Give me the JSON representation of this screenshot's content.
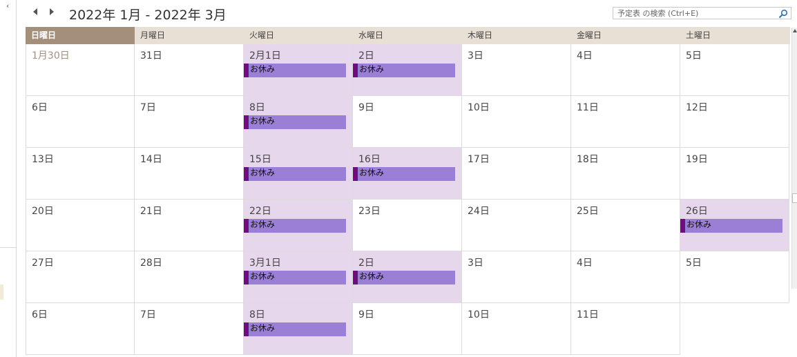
{
  "window": {
    "collapse_glyph": "‹"
  },
  "header": {
    "range_title": "2022年 1月 - 2022年 3月",
    "prev_icon": "left-arrow",
    "next_icon": "right-arrow"
  },
  "search": {
    "placeholder": "予定表 の検索 (Ctrl+E)",
    "icon": "magnifier"
  },
  "weekdays": [
    "日曜日",
    "月曜日",
    "火曜日",
    "水曜日",
    "木曜日",
    "金曜日",
    "土曜日"
  ],
  "colors": {
    "today_header": "#a48f7a",
    "appointment": "#9b7ed6",
    "appointment_bar": "#6a1078",
    "selected_day": "#e6d7ec"
  },
  "weeks": [
    {
      "days": [
        {
          "label": "1月30日",
          "other": true
        },
        {
          "label": "31日"
        },
        {
          "label": "2月1日",
          "event": "お休み"
        },
        {
          "label": "2日",
          "event": "お休み"
        },
        {
          "label": "3日"
        },
        {
          "label": "4日"
        },
        {
          "label": "5日"
        }
      ]
    },
    {
      "days": [
        {
          "label": "6日"
        },
        {
          "label": "7日"
        },
        {
          "label": "8日",
          "event": "お休み"
        },
        {
          "label": "9日"
        },
        {
          "label": "10日"
        },
        {
          "label": "11日"
        },
        {
          "label": "12日"
        }
      ]
    },
    {
      "days": [
        {
          "label": "13日"
        },
        {
          "label": "14日"
        },
        {
          "label": "15日",
          "event": "お休み"
        },
        {
          "label": "16日",
          "event": "お休み"
        },
        {
          "label": "17日"
        },
        {
          "label": "18日"
        },
        {
          "label": "19日"
        }
      ]
    },
    {
      "days": [
        {
          "label": "20日"
        },
        {
          "label": "21日"
        },
        {
          "label": "22日",
          "event": "お休み"
        },
        {
          "label": "23日"
        },
        {
          "label": "24日"
        },
        {
          "label": "25日"
        },
        {
          "label": "26日",
          "event": "お休み"
        }
      ]
    },
    {
      "days": [
        {
          "label": "27日"
        },
        {
          "label": "28日"
        },
        {
          "label": "3月1日",
          "event": "お休み"
        },
        {
          "label": "2日",
          "event": "お休み"
        },
        {
          "label": "3日"
        },
        {
          "label": "4日"
        },
        {
          "label": "5日"
        }
      ]
    },
    {
      "days": [
        {
          "label": "6日"
        },
        {
          "label": "7日"
        },
        {
          "label": "8日",
          "event": "お休み"
        },
        {
          "label": "9日"
        },
        {
          "label": "10日"
        },
        {
          "label": "11日"
        },
        {
          "label": "",
          "hidden": true
        }
      ]
    }
  ]
}
